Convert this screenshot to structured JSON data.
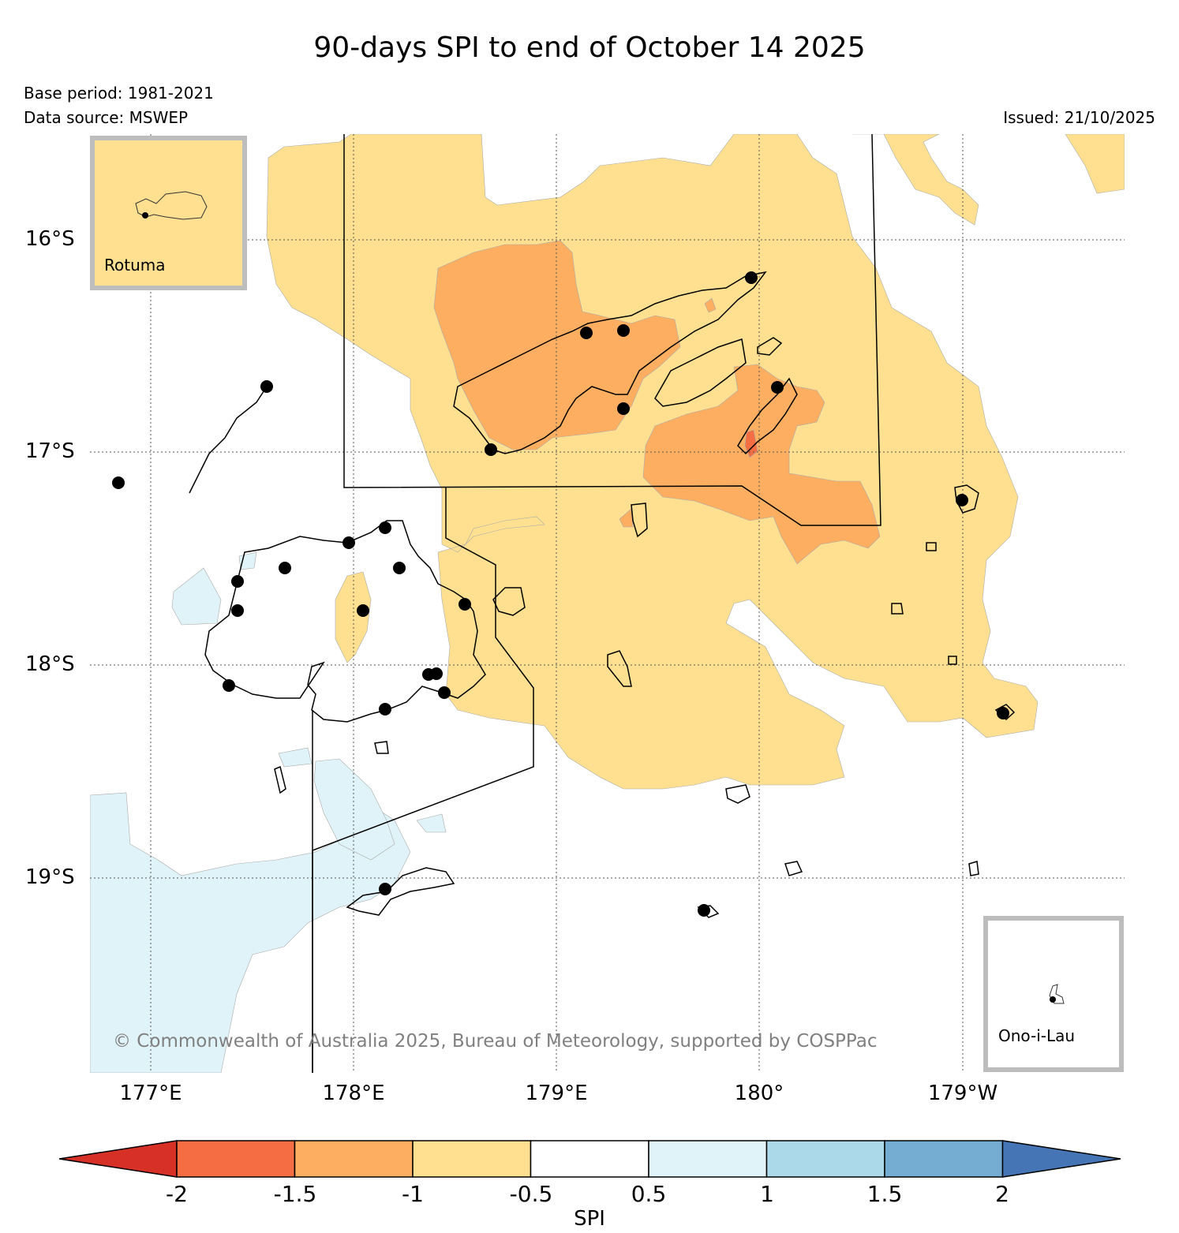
{
  "title": "90-days SPI to end of October 14 2025",
  "base_period": "Base period: 1981-2021",
  "data_source": "Data source: MSWEP",
  "issued": "Issued: 21/10/2025",
  "lat_labels": [
    "16°S",
    "17°S",
    "18°S",
    "19°S"
  ],
  "lon_labels": [
    "177°E",
    "178°E",
    "179°E",
    "180°",
    "179°W"
  ],
  "insets": {
    "top_left": "Rotuma",
    "bottom_right": "Ono-i-Lau"
  },
  "credit": "© Commonwealth of Australia 2025, Bureau of Meteorology, supported by COSPPac",
  "colorbar": {
    "title": "SPI",
    "ticks": [
      "-2",
      "-1.5",
      "-1",
      "-0.5",
      "0.5",
      "1",
      "1.5",
      "2"
    ],
    "colors": [
      "#d73027",
      "#f46d43",
      "#fdae61",
      "#fee090",
      "#ffffff",
      "#e0f3f8",
      "#abd9e9",
      "#74add1",
      "#4575b4"
    ]
  },
  "colors": {
    "dry_moderate": "#fdae61",
    "dry_mild": "#fee090",
    "wet_mild": "#e0f3f8",
    "dry_severe": "#f46d43",
    "inset_border": "#bdbdbd"
  }
}
